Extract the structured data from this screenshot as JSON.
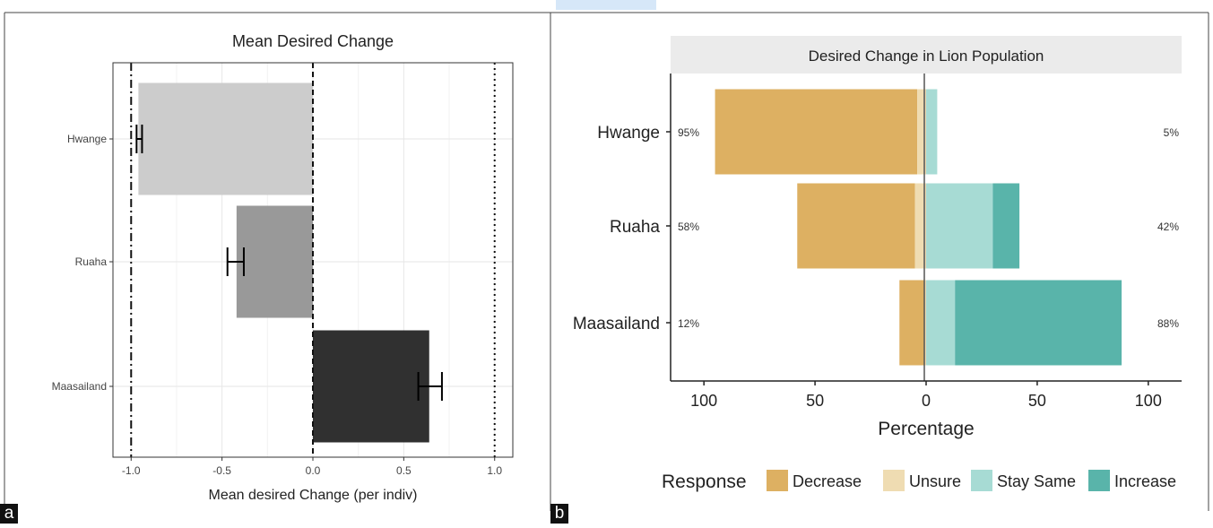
{
  "colors": {
    "decrease": "#DDB062",
    "unsure": "#EFDCB2",
    "stay_same": "#A7DBD4",
    "increase": "#59B4AA",
    "panel_a_bars": [
      "#CCCCCC",
      "#999999",
      "#303030"
    ],
    "strip_background": "#EBEBEB",
    "top_band": "#D6E7F8"
  },
  "panel_labels": {
    "a": "a",
    "b": "b"
  },
  "chart_data": [
    {
      "id": "a",
      "type": "bar",
      "orientation": "horizontal",
      "title": "Mean Desired Change",
      "xlabel": "Mean desired Change (per indiv)",
      "ylabel": "",
      "categories": [
        "Hwange",
        "Ruaha",
        "Maasailand"
      ],
      "values": [
        -0.96,
        -0.42,
        0.64
      ],
      "error": [
        {
          "low": -0.97,
          "high": -0.94
        },
        {
          "low": -0.47,
          "high": -0.38
        },
        {
          "low": 0.58,
          "high": 0.71
        }
      ],
      "xlim": [
        -1.1,
        1.1
      ],
      "xticks": [
        -1.0,
        -0.5,
        0.0,
        0.5,
        1.0
      ],
      "xtick_labels": [
        "-1.0",
        "-0.5",
        "0.0",
        "0.5",
        "1.0"
      ],
      "reference_lines": [
        {
          "x": -1.0,
          "style": "dash-dot"
        },
        {
          "x": 0.0,
          "style": "dashed"
        },
        {
          "x": 1.0,
          "style": "dotted"
        }
      ],
      "grid": true
    },
    {
      "id": "b",
      "type": "bar",
      "stacked": "diverging",
      "orientation": "horizontal",
      "title": "Desired Change in Lion Population",
      "xlabel": "Percentage",
      "ylabel": "",
      "categories": [
        "Hwange",
        "Ruaha",
        "Maasailand"
      ],
      "series": [
        {
          "name": "Decrease",
          "values": [
            91,
            53,
            11
          ]
        },
        {
          "name": "Unsure",
          "values": [
            4,
            5,
            1
          ]
        },
        {
          "name": "Stay Same",
          "values": [
            5,
            30,
            13
          ]
        },
        {
          "name": "Increase",
          "values": [
            0,
            12,
            75
          ]
        }
      ],
      "left_labels": [
        "95%",
        "58%",
        "12%"
      ],
      "right_labels": [
        "5%",
        "42%",
        "88%"
      ],
      "xlim": [
        -115,
        115
      ],
      "xticks": [
        -100,
        -50,
        0,
        50,
        100
      ],
      "xtick_labels": [
        "100",
        "50",
        "0",
        "50",
        "100"
      ],
      "legend": {
        "title": "Response",
        "position": "bottom",
        "entries": [
          "Decrease",
          "Unsure",
          "Stay Same",
          "Increase"
        ]
      },
      "grid": false
    }
  ]
}
